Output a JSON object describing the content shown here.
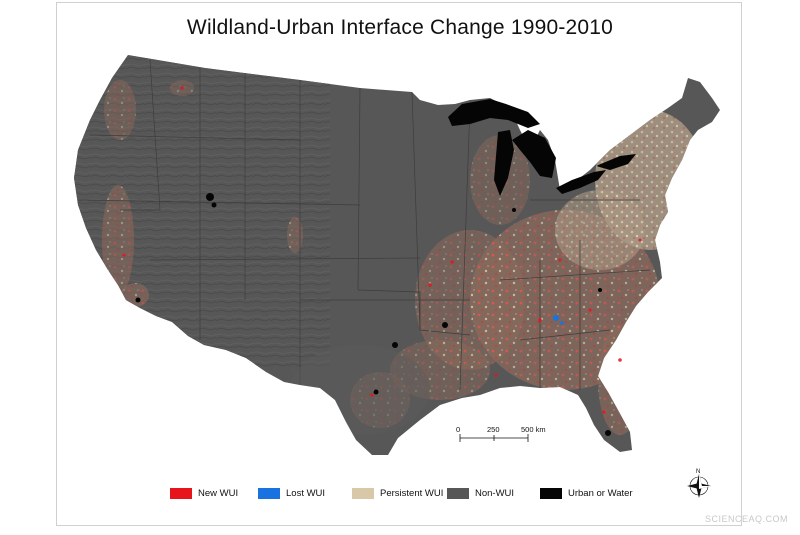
{
  "title": "Wildland-Urban Interface Change 1990-2010",
  "scale_bar": {
    "labels": [
      "0",
      "250",
      "500 km"
    ]
  },
  "compass": {
    "north_label": "N",
    "icon": "compass-rose-icon"
  },
  "legend": [
    {
      "label": "New WUI",
      "color": "#e8141c"
    },
    {
      "label": "Lost WUI",
      "color": "#1872e0"
    },
    {
      "label": "Persistent WUI",
      "color": "#d8c8a8"
    },
    {
      "label": "Non-WUI",
      "color": "#575757"
    },
    {
      "label": "Urban or Water",
      "color": "#050505"
    }
  ],
  "colors": {
    "land": "#575757",
    "water": "#050505",
    "new_wui": "#e8141c",
    "persistent_wui": "#d8c8a8"
  },
  "watermark": "SCIENCEAQ.COM"
}
